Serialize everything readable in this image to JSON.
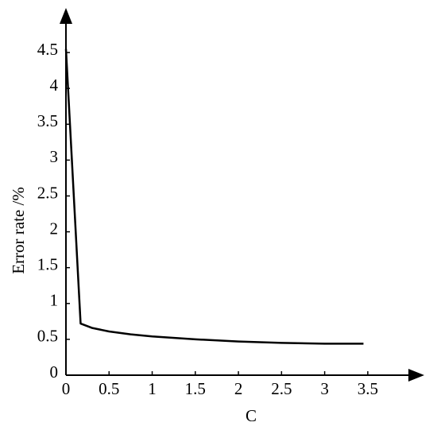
{
  "chart_data": {
    "type": "line",
    "x_label": "C",
    "y_label": "Error rate /%",
    "x": [
      0,
      0.17,
      0.3,
      0.5,
      0.75,
      1,
      1.5,
      2,
      2.5,
      3,
      3.45
    ],
    "series": [
      {
        "color": "#000000",
        "values": [
          4.55,
          0.72,
          0.66,
          0.61,
          0.57,
          0.54,
          0.5,
          0.47,
          0.45,
          0.44,
          0.44
        ]
      }
    ],
    "xlim": [
      0,
      4.1
    ],
    "ylim": [
      0,
      5.1
    ],
    "xticks": [
      0,
      0.5,
      1,
      1.5,
      2,
      2.5,
      3,
      3.5
    ],
    "yticks": [
      0,
      0.5,
      1,
      1.5,
      2,
      2.5,
      3,
      3.5,
      4,
      4.5
    ]
  }
}
